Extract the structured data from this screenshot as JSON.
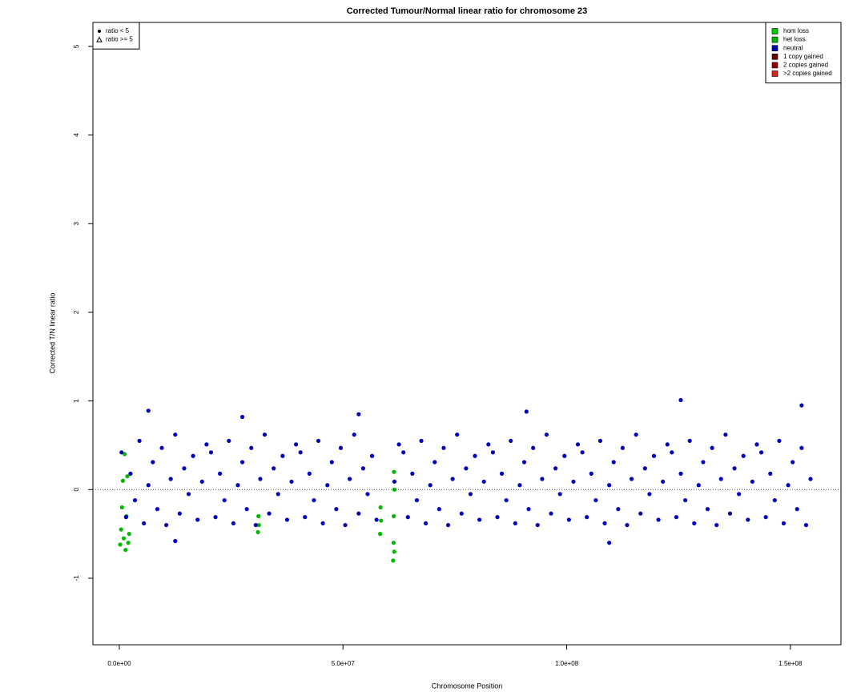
{
  "chart_data": {
    "type": "scatter",
    "title": "Corrected Tumour/Normal linear ratio for chromosome  23",
    "x_label": "Chromosome Position",
    "y_label": "Corrected T/N linear ratio",
    "xlim": [
      -5900000,
      161300000
    ],
    "ylim": [
      -1.75,
      5.27
    ],
    "xticks": [
      {
        "value": 0,
        "label": "0.0e+00"
      },
      {
        "value": 50000000,
        "label": "5.0e+07"
      },
      {
        "value": 100000000,
        "label": "1.0e+08"
      },
      {
        "value": 150000000,
        "label": "1.5e+08"
      }
    ],
    "yticks": [
      -1,
      0,
      1,
      2,
      3,
      4,
      5
    ],
    "hline": 0,
    "legend_position": "top-right",
    "shape_legend_position": "top-left",
    "shape_legend": [
      {
        "label": "ratio < 5",
        "marker": "circle"
      },
      {
        "label": "ratio >= 5",
        "marker": "triangle"
      }
    ],
    "series": [
      {
        "name": "hom loss",
        "color": "#00cc00",
        "x": [],
        "values": []
      },
      {
        "name": "het loss",
        "color": "#00b800",
        "x": [
          200000,
          400000,
          600000,
          800000,
          1000000,
          1200000,
          1400000,
          1600000,
          1800000,
          2000000,
          2200000,
          31000000,
          31100000,
          31200000,
          58300000,
          58400000,
          58500000,
          61200000,
          61300000,
          61350000,
          61400000,
          61450000,
          61500000
        ],
        "values": [
          -0.62,
          -0.45,
          -0.2,
          0.1,
          -0.55,
          0.4,
          -0.68,
          -0.3,
          0.15,
          -0.6,
          -0.5,
          -0.48,
          -0.3,
          -0.4,
          -0.5,
          -0.2,
          -0.35,
          -0.8,
          -0.6,
          -0.3,
          0.2,
          -0.7,
          0.0
        ]
      },
      {
        "name": "neutral",
        "color": "#0000bb",
        "x": [
          500000,
          1500000,
          2500000,
          3500000,
          4500000,
          5500000,
          6500000,
          7500000,
          8500000,
          9500000,
          10500000,
          11500000,
          12500000,
          13500000,
          14500000,
          15500000,
          16500000,
          17500000,
          18500000,
          19500000,
          20500000,
          21500000,
          22500000,
          23500000,
          24500000,
          25500000,
          26500000,
          27500000,
          28500000,
          29500000,
          30500000,
          31500000,
          32500000,
          33500000,
          34500000,
          35500000,
          36500000,
          37500000,
          38500000,
          39500000,
          40500000,
          41500000,
          42500000,
          43500000,
          44500000,
          45500000,
          46500000,
          47500000,
          48500000,
          49500000,
          50500000,
          51500000,
          52500000,
          53500000,
          54500000,
          55500000,
          56500000,
          57500000,
          61500000,
          62500000,
          63500000,
          64500000,
          65500000,
          66500000,
          67500000,
          68500000,
          69500000,
          70500000,
          71500000,
          72500000,
          73500000,
          74500000,
          75500000,
          76500000,
          77500000,
          78500000,
          79500000,
          80500000,
          81500000,
          82500000,
          83500000,
          84500000,
          85500000,
          86500000,
          87500000,
          88500000,
          89500000,
          90500000,
          91500000,
          92500000,
          93500000,
          94500000,
          95500000,
          96500000,
          97500000,
          98500000,
          99500000,
          100500000,
          101500000,
          102500000,
          103500000,
          104500000,
          105500000,
          106500000,
          107500000,
          108500000,
          109500000,
          110500000,
          111500000,
          112500000,
          113500000,
          114500000,
          115500000,
          116500000,
          117500000,
          118500000,
          119500000,
          120500000,
          121500000,
          122500000,
          123500000,
          124500000,
          125500000,
          126500000,
          127500000,
          128500000,
          129500000,
          130500000,
          131500000,
          132500000,
          133500000,
          134500000,
          135500000,
          136500000,
          137500000,
          138500000,
          139500000,
          140500000,
          141500000,
          142500000,
          143500000,
          144500000,
          145500000,
          146500000,
          147500000,
          148500000,
          149500000,
          150500000,
          151500000,
          152500000,
          153500000,
          154500000,
          6500000,
          53500000,
          125500000,
          152500000,
          109500000,
          12500000,
          27500000,
          91000000
        ],
        "values": [
          0.42,
          -0.31,
          0.18,
          -0.12,
          0.55,
          -0.38,
          0.05,
          0.31,
          -0.22,
          0.47,
          -0.4,
          0.12,
          0.62,
          -0.27,
          0.24,
          -0.05,
          0.38,
          -0.34,
          0.09,
          0.51,
          0.42,
          -0.31,
          0.18,
          -0.12,
          0.55,
          -0.38,
          0.05,
          0.31,
          -0.22,
          0.47,
          -0.4,
          0.12,
          0.62,
          -0.27,
          0.24,
          -0.05,
          0.38,
          -0.34,
          0.09,
          0.51,
          0.42,
          -0.31,
          0.18,
          -0.12,
          0.55,
          -0.38,
          0.05,
          0.31,
          -0.22,
          0.47,
          -0.4,
          0.12,
          0.62,
          -0.27,
          0.24,
          -0.05,
          0.38,
          -0.34,
          0.09,
          0.51,
          0.42,
          -0.31,
          0.18,
          -0.12,
          0.55,
          -0.38,
          0.05,
          0.31,
          -0.22,
          0.47,
          -0.4,
          0.12,
          0.62,
          -0.27,
          0.24,
          -0.05,
          0.38,
          -0.34,
          0.09,
          0.51,
          0.42,
          -0.31,
          0.18,
          -0.12,
          0.55,
          -0.38,
          0.05,
          0.31,
          -0.22,
          0.47,
          -0.4,
          0.12,
          0.62,
          -0.27,
          0.24,
          -0.05,
          0.38,
          -0.34,
          0.09,
          0.51,
          0.42,
          -0.31,
          0.18,
          -0.12,
          0.55,
          -0.38,
          0.05,
          0.31,
          -0.22,
          0.47,
          -0.4,
          0.12,
          0.62,
          -0.27,
          0.24,
          -0.05,
          0.38,
          -0.34,
          0.09,
          0.51,
          0.42,
          -0.31,
          0.18,
          -0.12,
          0.55,
          -0.38,
          0.05,
          0.31,
          -0.22,
          0.47,
          -0.4,
          0.12,
          0.62,
          -0.27,
          0.24,
          -0.05,
          0.38,
          -0.34,
          0.09,
          0.51,
          0.42,
          -0.31,
          0.18,
          -0.12,
          0.55,
          -0.38,
          0.05,
          0.31,
          -0.22,
          0.47,
          -0.4,
          0.12,
          0.89,
          0.85,
          1.01,
          0.95,
          -0.6,
          -0.58,
          0.82,
          0.88
        ]
      },
      {
        "name": "1 copy gained",
        "color": "#6b0000",
        "x": [],
        "values": []
      },
      {
        "name": "2 copies gained",
        "color": "#990000",
        "x": [],
        "values": []
      },
      {
        "name": ">2 copies gained",
        "color": "#dd2222",
        "x": [],
        "values": []
      }
    ]
  }
}
